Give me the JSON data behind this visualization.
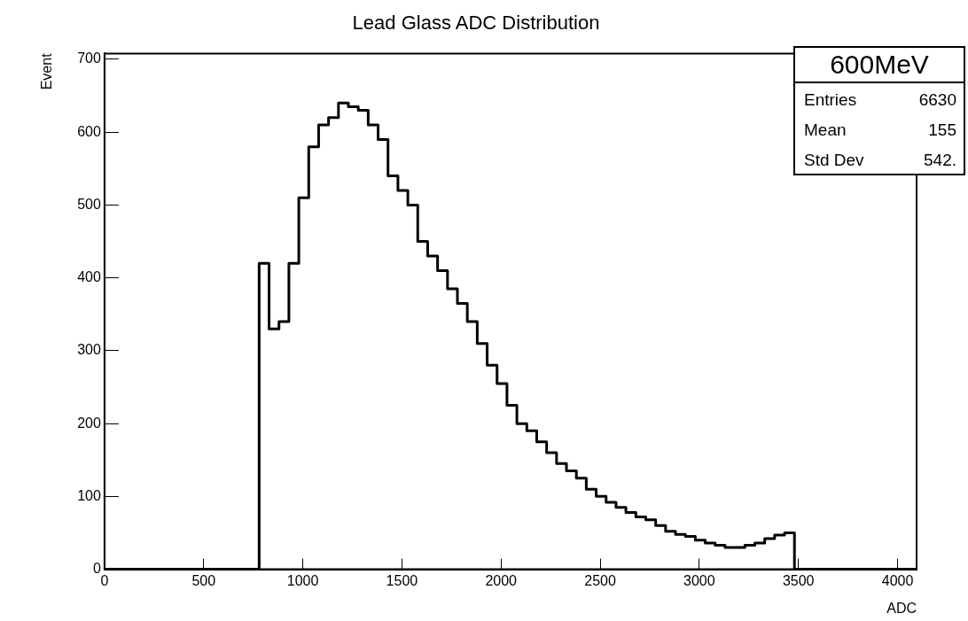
{
  "chart_data": {
    "type": "histogram",
    "title": "Lead Glass ADC Distribution",
    "xlabel": "ADC",
    "ylabel": "Event",
    "bins": [
      0,
      780,
      830,
      880,
      930,
      980,
      1030,
      1080,
      1130,
      1180,
      1230,
      1280,
      1330,
      1380,
      1430,
      1480,
      1530,
      1580,
      1630,
      1680,
      1730,
      1780,
      1830,
      1880,
      1930,
      1980,
      2030,
      2080,
      2130,
      2180,
      2230,
      2280,
      2330,
      2380,
      2430,
      2480,
      2530,
      2580,
      2630,
      2680,
      2730,
      2780,
      2830,
      2880,
      2930,
      2980,
      3030,
      3080,
      3130,
      3180,
      3230,
      3280,
      3330,
      3380,
      3430,
      3480,
      4096
    ],
    "values": [
      0,
      420,
      330,
      340,
      420,
      510,
      580,
      610,
      620,
      640,
      635,
      630,
      610,
      590,
      540,
      520,
      500,
      450,
      430,
      410,
      385,
      365,
      340,
      310,
      280,
      255,
      225,
      200,
      190,
      175,
      160,
      145,
      135,
      125,
      110,
      100,
      92,
      85,
      78,
      72,
      68,
      60,
      52,
      48,
      45,
      40,
      36,
      33,
      30,
      30,
      33,
      36,
      42,
      47,
      50,
      0
    ],
    "color": "#000000",
    "xlim": [
      0,
      4096
    ],
    "xticks": [
      0,
      500,
      1000,
      1500,
      2000,
      2500,
      3000,
      3500,
      4000
    ],
    "ylim": [
      0,
      708
    ],
    "yticks": [
      0,
      100,
      200,
      300,
      400,
      500,
      600,
      700
    ],
    "grid": false,
    "legend": false,
    "annotations": [
      "600MeV",
      "Entries",
      "6630",
      "Mean",
      "155",
      "Std Dev",
      "542."
    ]
  }
}
